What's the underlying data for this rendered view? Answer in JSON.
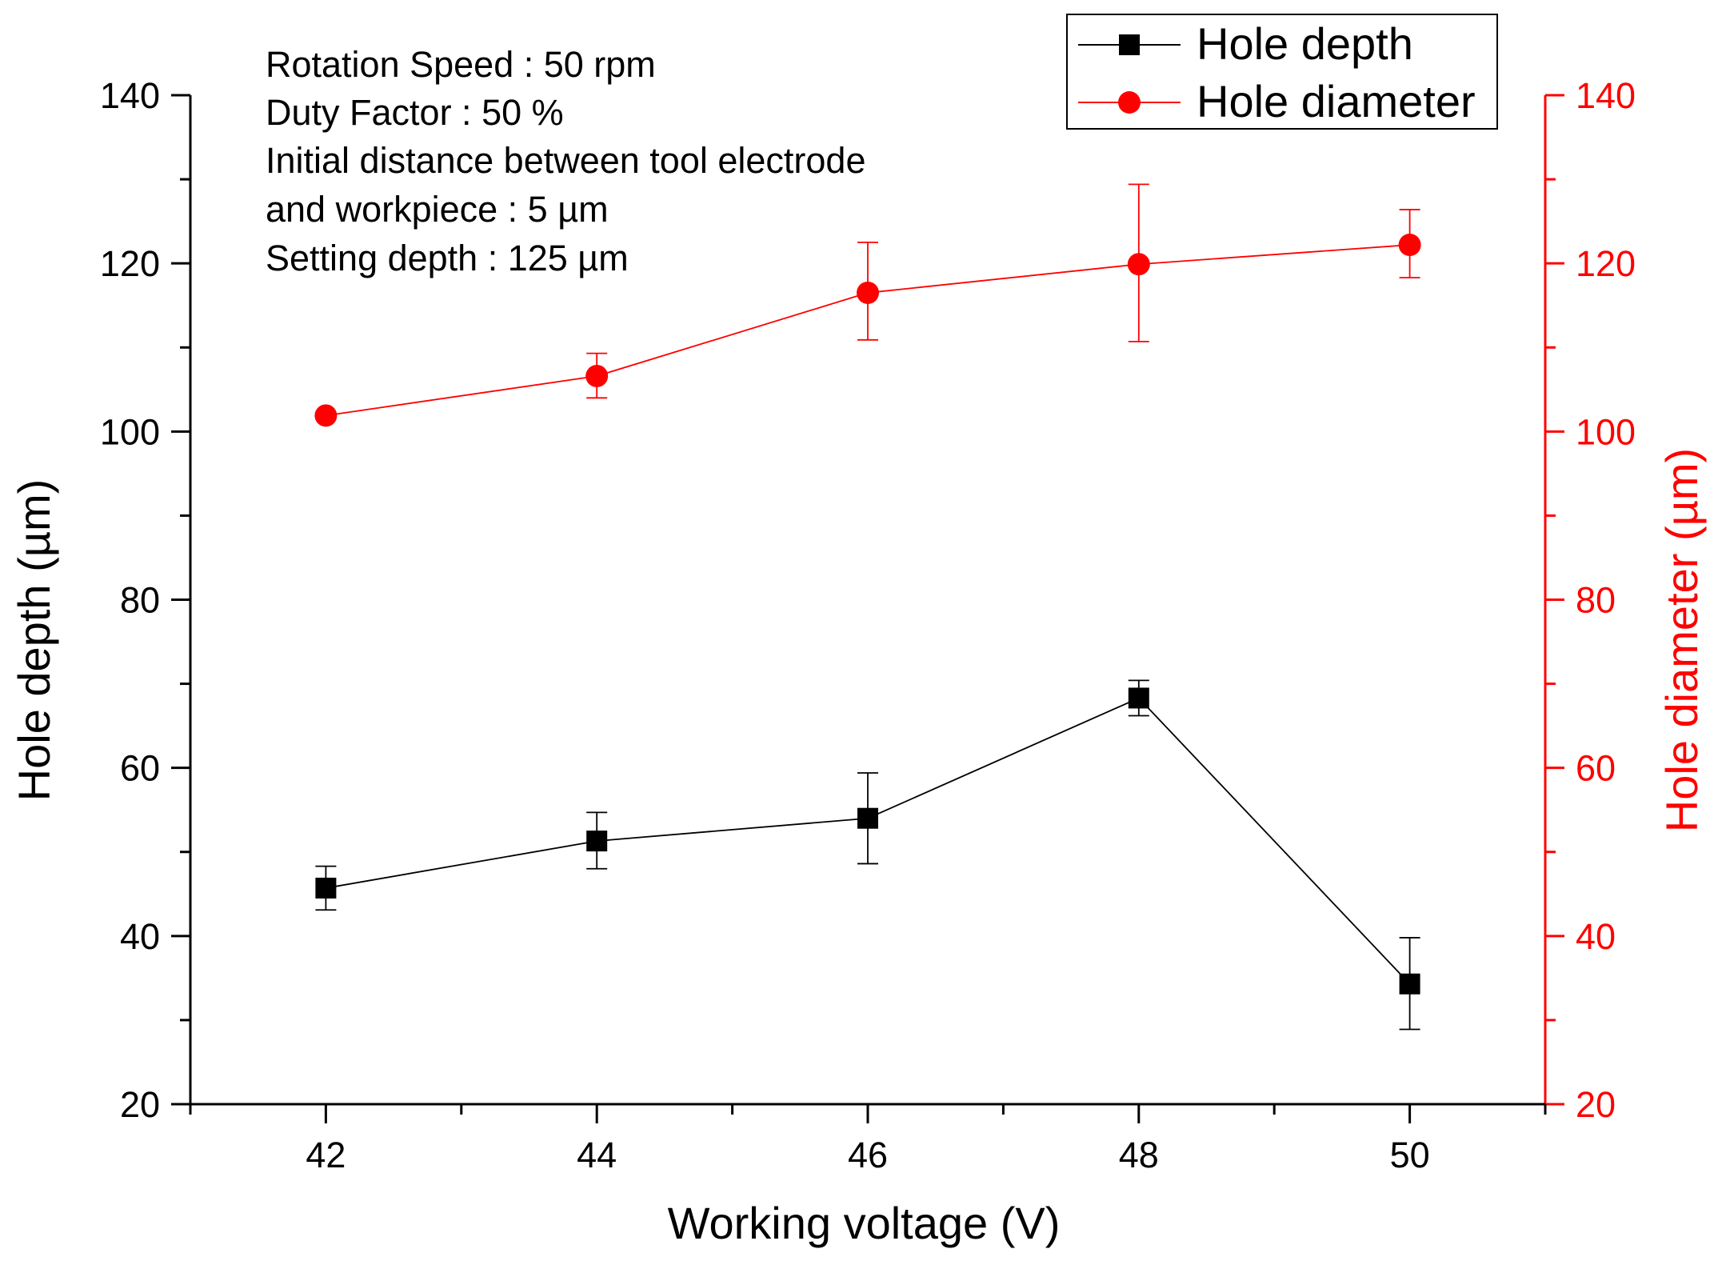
{
  "chart_data": {
    "type": "line",
    "x": [
      42,
      44,
      46,
      48,
      50
    ],
    "xlabel": "Working voltage (V)",
    "xlim": [
      41,
      51
    ],
    "xticks": [
      42,
      44,
      46,
      48,
      50
    ],
    "ylabel_left": "Hole depth (µm)",
    "ylabel_right": "Hole diameter (µm)",
    "ylim": [
      20,
      140
    ],
    "yticks": [
      20,
      40,
      60,
      80,
      100,
      120,
      140
    ],
    "series": [
      {
        "name": "Hole depth",
        "axis": "left",
        "marker": "square",
        "color": "#000000",
        "values": [
          45.7,
          51.3,
          54.0,
          68.3,
          34.3
        ],
        "err_low": [
          43.1,
          48.0,
          48.6,
          66.2,
          28.9
        ],
        "err_high": [
          48.3,
          54.7,
          59.4,
          70.4,
          39.8
        ]
      },
      {
        "name": "Hole diameter",
        "axis": "right",
        "marker": "circle",
        "color": "#ff0000",
        "values": [
          101.9,
          106.6,
          116.5,
          119.9,
          122.2
        ],
        "err_low": [
          101.9,
          104.0,
          110.9,
          110.7,
          118.3
        ],
        "err_high": [
          101.9,
          109.3,
          122.5,
          129.4,
          126.4
        ]
      }
    ],
    "annotation_lines": [
      "Rotation Speed : 50 rpm",
      "Duty Factor : 50 %",
      "Initial distance between tool electrode",
      "and workpiece : 5 µm",
      "Setting depth : 125 µm"
    ],
    "legend_position": "top-right"
  },
  "colors": {
    "left_axis": "#000000",
    "right_axis": "#ff0000"
  }
}
